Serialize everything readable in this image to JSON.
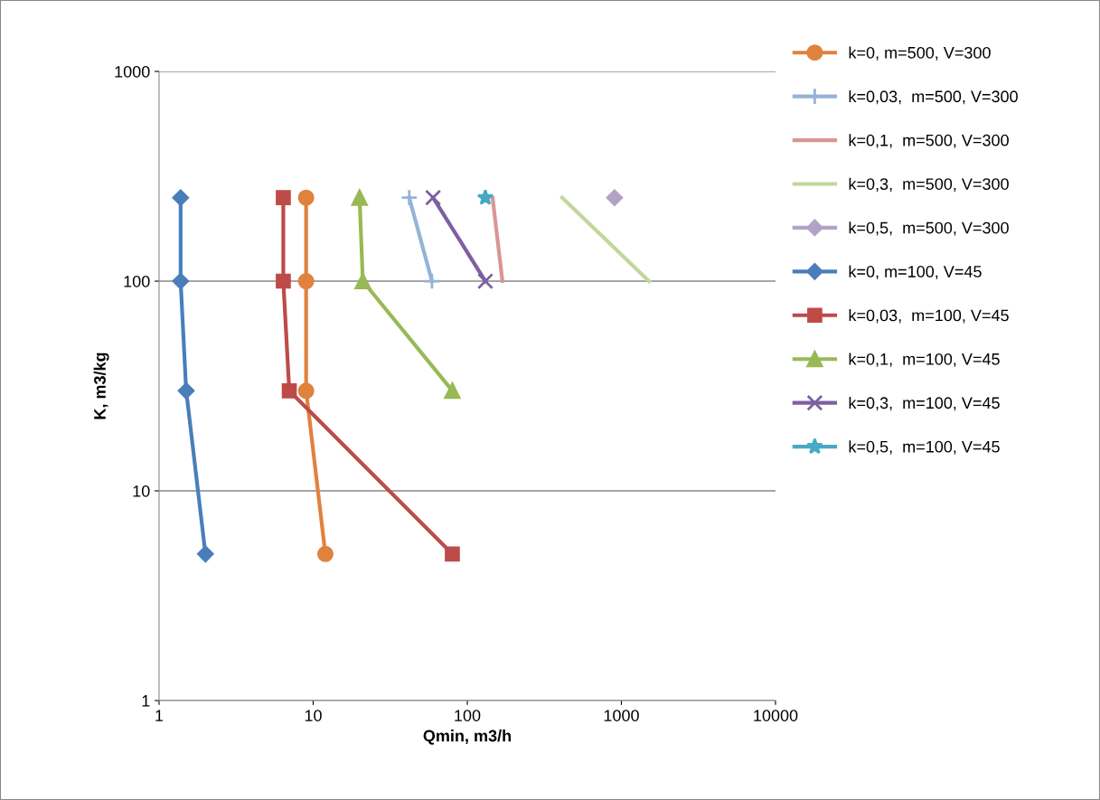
{
  "chart_data": {
    "type": "line",
    "xlabel": "Qmin, m3/h",
    "ylabel": "K, m3/kg",
    "log": "xy",
    "grid": "y",
    "legend": "right",
    "xlim": [
      1,
      10000
    ],
    "xticks": [
      1,
      10,
      100,
      1000,
      10000
    ],
    "ylim": [
      1,
      1000
    ],
    "yticks": [
      1,
      10,
      100,
      1000
    ],
    "series": [
      {
        "name": "k=0, m=500, V=300",
        "color": "#e0823d",
        "marker": "circle",
        "x": [
          9,
          9,
          9,
          12
        ],
        "values": [
          250,
          100,
          30,
          5
        ]
      },
      {
        "name": "k=0,03,  m=500, V=300",
        "color": "#95b3d7",
        "marker": "plus",
        "x": [
          42,
          59
        ],
        "values": [
          250,
          100
        ]
      },
      {
        "name": "k=0,1,  m=500, V=300",
        "color": "#d99694",
        "marker": "none",
        "x": [
          146,
          169
        ],
        "values": [
          250,
          100
        ]
      },
      {
        "name": "k=0,3,  m=500, V=300",
        "color": "#c3d69b",
        "marker": "none",
        "x": [
          413,
          1510
        ],
        "values": [
          250,
          100
        ]
      },
      {
        "name": "k=0,5,  m=500, V=300",
        "color": "#b3a2c7",
        "marker": "diamond",
        "x": [
          903
        ],
        "values": [
          250
        ]
      },
      {
        "name": "k=0, m=100, V=45",
        "color": "#4a7ebb",
        "marker": "diamond",
        "x": [
          1.38,
          1.38,
          1.5,
          2.0
        ],
        "values": [
          250,
          100,
          30,
          5
        ]
      },
      {
        "name": "k=0,03,  m=100, V=45",
        "color": "#be4b48",
        "marker": "square",
        "x": [
          6.4,
          6.4,
          7.0,
          80
        ],
        "values": [
          250,
          100,
          30,
          5
        ]
      },
      {
        "name": "k=0,1,  m=100, V=45",
        "color": "#98b954",
        "marker": "triangle",
        "x": [
          20,
          21,
          80
        ],
        "values": [
          250,
          100,
          30
        ]
      },
      {
        "name": "k=0,3,  m=100, V=45",
        "color": "#7d60a0",
        "marker": "cross",
        "x": [
          60,
          131
        ],
        "values": [
          250,
          100
        ]
      },
      {
        "name": "k=0,5,  m=100, V=45",
        "color": "#46aac5",
        "marker": "star",
        "x": [
          131
        ],
        "values": [
          250
        ]
      }
    ]
  }
}
